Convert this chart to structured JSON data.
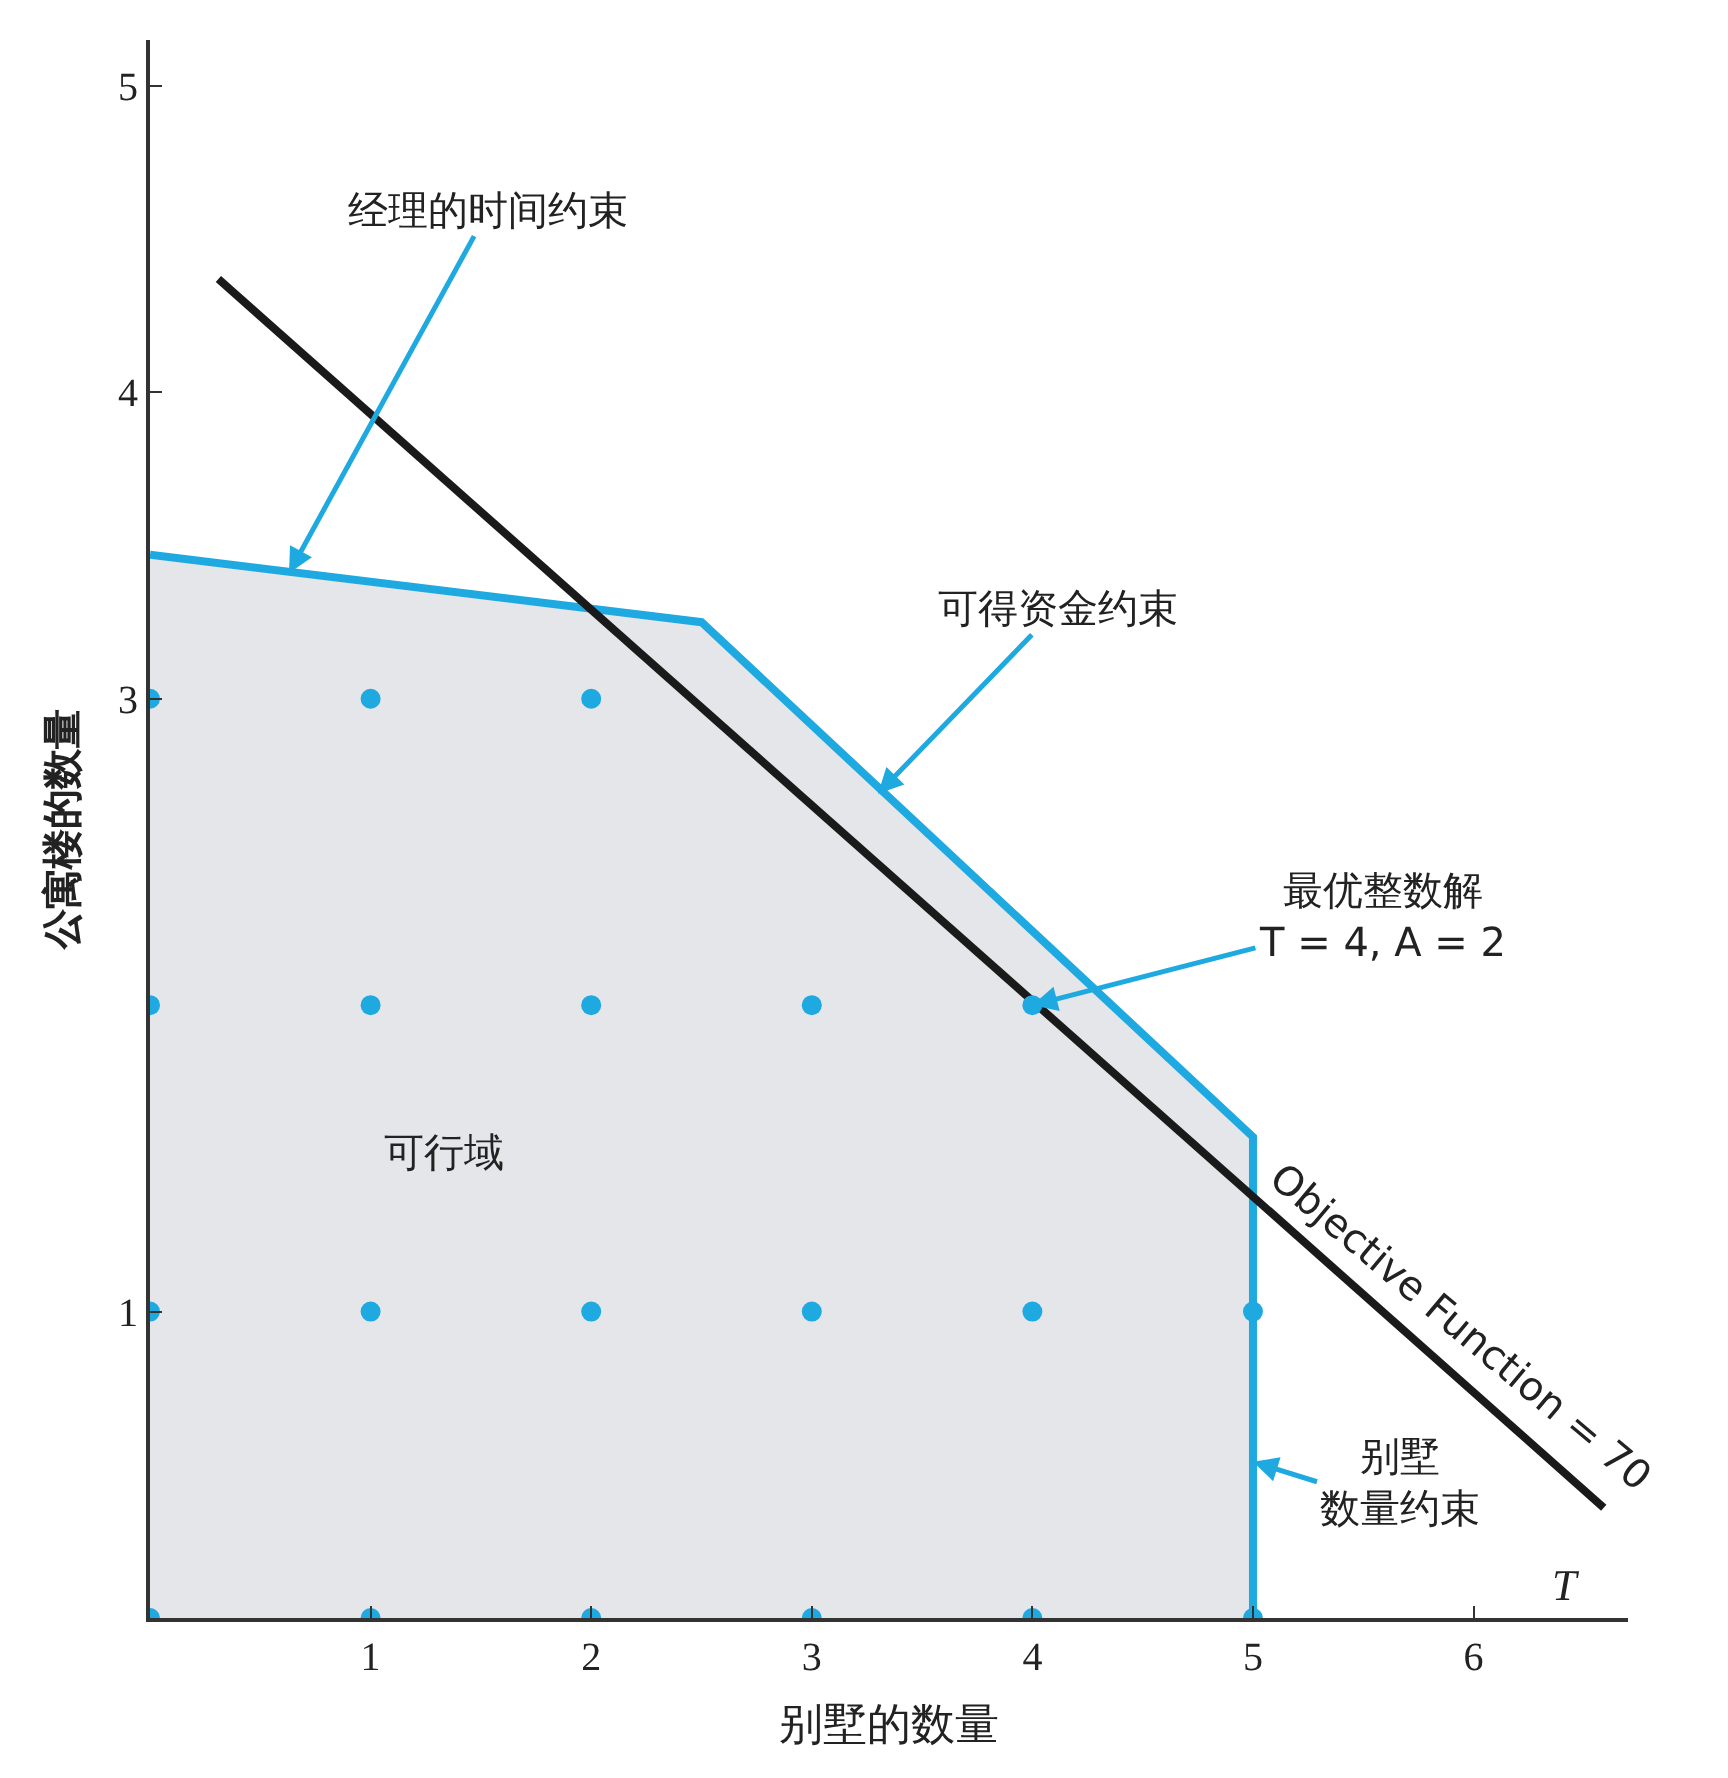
{
  "chart_data": {
    "type": "line",
    "xlabel": "别墅的数量",
    "ylabel": "公寓楼的数量",
    "xlim": [
      0,
      6.7
    ],
    "ylim": [
      0,
      5.15
    ],
    "xticks": [
      1,
      2,
      3,
      4,
      5,
      6
    ],
    "yticks": [
      1,
      3,
      4,
      5
    ],
    "series": [
      {
        "type": "area",
        "color": "#1fa9e1",
        "x": [
          0,
          2.5,
          5,
          5
        ],
        "values": [
          3.47,
          3.25,
          1.57,
          0
        ]
      },
      {
        "color": "#1a1a1a",
        "x": [
          0.31,
          6.59
        ],
        "values": [
          4.37,
          0.36
        ]
      },
      {
        "type": "scatter",
        "color": "#1fa9e1",
        "marker": "circle",
        "x": [
          0,
          1,
          2,
          3,
          4,
          5,
          0,
          1,
          2,
          3,
          4,
          5,
          0,
          1,
          2,
          3,
          4,
          0,
          1,
          2
        ],
        "values": [
          0,
          0,
          0,
          0,
          0,
          0,
          1,
          1,
          1,
          1,
          1,
          1,
          2,
          2,
          2,
          2,
          2,
          3,
          3,
          3
        ]
      }
    ],
    "annotations": [
      {
        "text": "经理的时间约束",
        "x": 0.63,
        "y": 3.41
      },
      {
        "text": "可得资金约束",
        "x": 3.3,
        "y": 2.69
      },
      {
        "text": "最优整数解\nT = 4, A = 2",
        "x": 4,
        "y": 2
      },
      {
        "text": "Objective Function = 70",
        "x": 5.94,
        "y": 0.77
      },
      {
        "text": "别墅数量约束",
        "x": 5,
        "y": 0.51
      },
      "可行域",
      "T"
    ]
  }
}
